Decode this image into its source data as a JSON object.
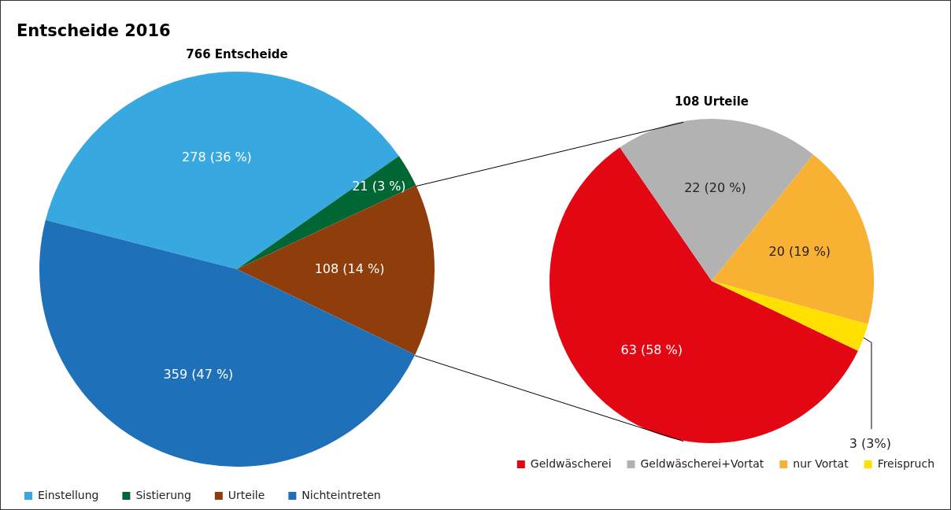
{
  "chart_data": [
    {
      "type": "pie",
      "title": "Entscheide 2016",
      "subtitle": "766 Entscheide",
      "categories": [
        "Einstellung",
        "Sistierung",
        "Urteile",
        "Nichteintreten"
      ],
      "values": [
        278,
        21,
        108,
        359
      ],
      "colors": [
        "#38a8e0",
        "#006633",
        "#8f3d0a",
        "#1e70b8"
      ],
      "value_labels": [
        "278 (36 %)",
        "21 (3 %)",
        "108 (14 %)",
        "359 (47 %)"
      ],
      "legend": "bottom"
    },
    {
      "type": "pie",
      "title": "108 Urteile",
      "categories": [
        "Geldwäscherei",
        "Geldwäscherei+Vortat",
        "nur Vortat",
        "Freispruch"
      ],
      "values": [
        63,
        22,
        20,
        3
      ],
      "colors": [
        "#e30613",
        "#b2b2b2",
        "#f8b133",
        "#ffe000"
      ],
      "value_labels": [
        "63 (58 %)",
        "22 (20 %)",
        "20 (19 %)",
        "3 (3%)"
      ],
      "legend": "bottom"
    }
  ]
}
